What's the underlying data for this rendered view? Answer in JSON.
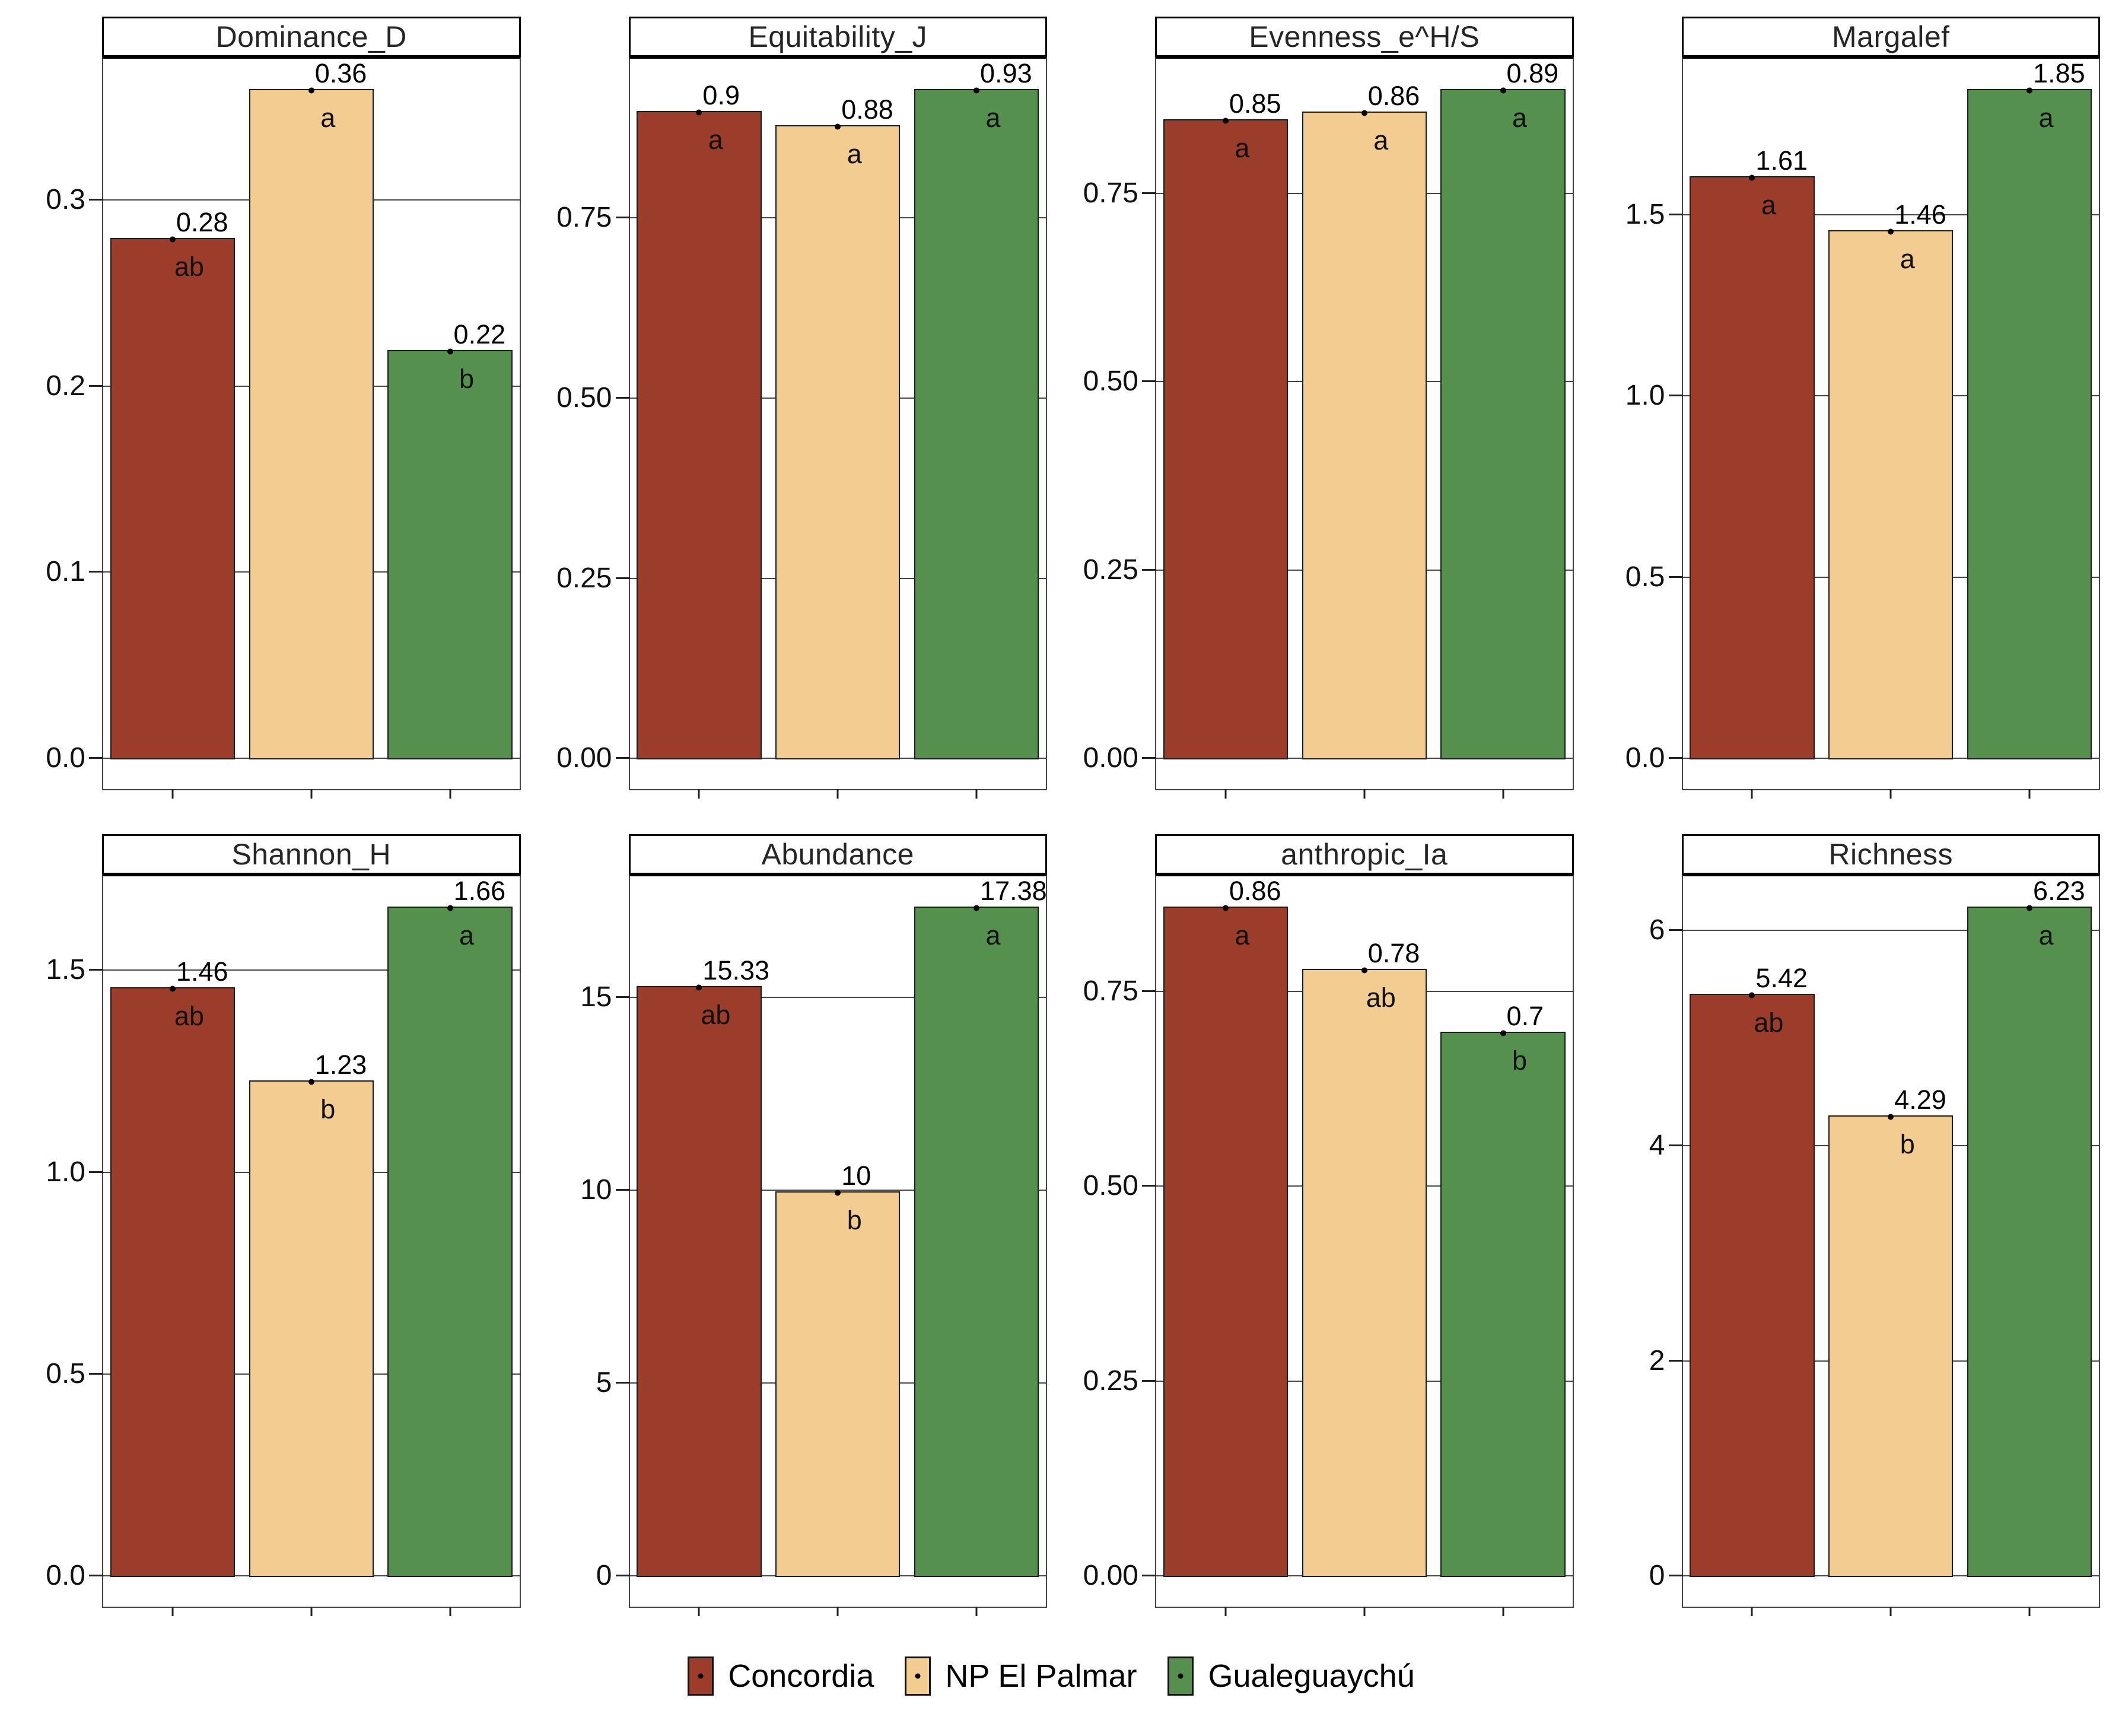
{
  "figure_title": "",
  "legend": {
    "position": "bottom",
    "items": [
      {
        "label": "Concordia",
        "color": "#9C3D2B"
      },
      {
        "label": "NP El Palmar",
        "color": "#F2CC90"
      },
      {
        "label": "Gualeguaychú",
        "color": "#56904F"
      }
    ]
  },
  "chart_data": {
    "type": "bar",
    "facet_layout": {
      "rows": 2,
      "cols": 4
    },
    "categories": [
      "Concordia",
      "NP El Palmar",
      "Gualeguaychú"
    ],
    "series_colors": [
      "#9C3D2B",
      "#F2CC90",
      "#56904F"
    ],
    "grid": true,
    "legend_position": "bottom",
    "point_marker_on_bar_top": true,
    "panels": [
      {
        "title": "Dominance_D",
        "values": [
          0.28,
          0.36,
          0.22
        ],
        "value_labels": [
          "0.28",
          "0.36",
          "0.22"
        ],
        "sig_letters": [
          "ab",
          "a",
          "b"
        ],
        "ylim": [
          0,
          0.38
        ],
        "yticks": [
          {
            "v": 0.0,
            "t": "0.0"
          },
          {
            "v": 0.1,
            "t": "0.1"
          },
          {
            "v": 0.2,
            "t": "0.2"
          },
          {
            "v": 0.3,
            "t": "0.3"
          }
        ]
      },
      {
        "title": "Equitability_J",
        "values": [
          0.9,
          0.88,
          0.93
        ],
        "value_labels": [
          "0.9",
          "0.88",
          "0.93"
        ],
        "sig_letters": [
          "a",
          "a",
          "a"
        ],
        "ylim": [
          0,
          0.97
        ],
        "yticks": [
          {
            "v": 0.0,
            "t": "0.00"
          },
          {
            "v": 0.25,
            "t": "0.25"
          },
          {
            "v": 0.5,
            "t": "0.50"
          },
          {
            "v": 0.75,
            "t": "0.75"
          }
        ]
      },
      {
        "title": "Evenness_e^H/S",
        "values": [
          0.85,
          0.86,
          0.89
        ],
        "value_labels": [
          "0.85",
          "0.86",
          "0.89"
        ],
        "sig_letters": [
          "a",
          "a",
          "a"
        ],
        "ylim": [
          0,
          0.93
        ],
        "yticks": [
          {
            "v": 0.0,
            "t": "0.00"
          },
          {
            "v": 0.25,
            "t": "0.25"
          },
          {
            "v": 0.5,
            "t": "0.50"
          },
          {
            "v": 0.75,
            "t": "0.75"
          }
        ]
      },
      {
        "title": "Margalef",
        "values": [
          1.61,
          1.46,
          1.85
        ],
        "value_labels": [
          "1.61",
          "1.46",
          "1.85"
        ],
        "sig_letters": [
          "a",
          "a",
          "a"
        ],
        "ylim": [
          0,
          1.93
        ],
        "yticks": [
          {
            "v": 0.0,
            "t": "0.0"
          },
          {
            "v": 0.5,
            "t": "0.5"
          },
          {
            "v": 1.0,
            "t": "1.0"
          },
          {
            "v": 1.5,
            "t": "1.5"
          }
        ]
      },
      {
        "title": "Shannon_H",
        "values": [
          1.46,
          1.23,
          1.66
        ],
        "value_labels": [
          "1.46",
          "1.23",
          "1.66"
        ],
        "sig_letters": [
          "ab",
          "b",
          "a"
        ],
        "ylim": [
          0,
          1.73
        ],
        "yticks": [
          {
            "v": 0.0,
            "t": "0.0"
          },
          {
            "v": 0.5,
            "t": "0.5"
          },
          {
            "v": 1.0,
            "t": "1.0"
          },
          {
            "v": 1.5,
            "t": "1.5"
          }
        ]
      },
      {
        "title": "Abundance",
        "values": [
          15.33,
          10,
          17.38
        ],
        "value_labels": [
          "15.33",
          "10",
          "17.38"
        ],
        "sig_letters": [
          "ab",
          "b",
          "a"
        ],
        "ylim": [
          0,
          18.1
        ],
        "yticks": [
          {
            "v": 0,
            "t": "0"
          },
          {
            "v": 5,
            "t": "5"
          },
          {
            "v": 10,
            "t": "10"
          },
          {
            "v": 15,
            "t": "15"
          }
        ]
      },
      {
        "title": "anthropic_Ia",
        "values": [
          0.86,
          0.78,
          0.7
        ],
        "value_labels": [
          "0.86",
          "0.78",
          "0.7"
        ],
        "sig_letters": [
          "a",
          "ab",
          "b"
        ],
        "ylim": [
          0,
          0.9
        ],
        "yticks": [
          {
            "v": 0.0,
            "t": "0.00"
          },
          {
            "v": 0.25,
            "t": "0.25"
          },
          {
            "v": 0.5,
            "t": "0.50"
          },
          {
            "v": 0.75,
            "t": "0.75"
          }
        ]
      },
      {
        "title": "Richness",
        "values": [
          5.42,
          4.29,
          6.23
        ],
        "value_labels": [
          "5.42",
          "4.29",
          "6.23"
        ],
        "sig_letters": [
          "ab",
          "b",
          "a"
        ],
        "ylim": [
          0,
          6.5
        ],
        "yticks": [
          {
            "v": 0,
            "t": "0"
          },
          {
            "v": 2,
            "t": "2"
          },
          {
            "v": 4,
            "t": "4"
          },
          {
            "v": 6,
            "t": "6"
          }
        ]
      }
    ]
  }
}
